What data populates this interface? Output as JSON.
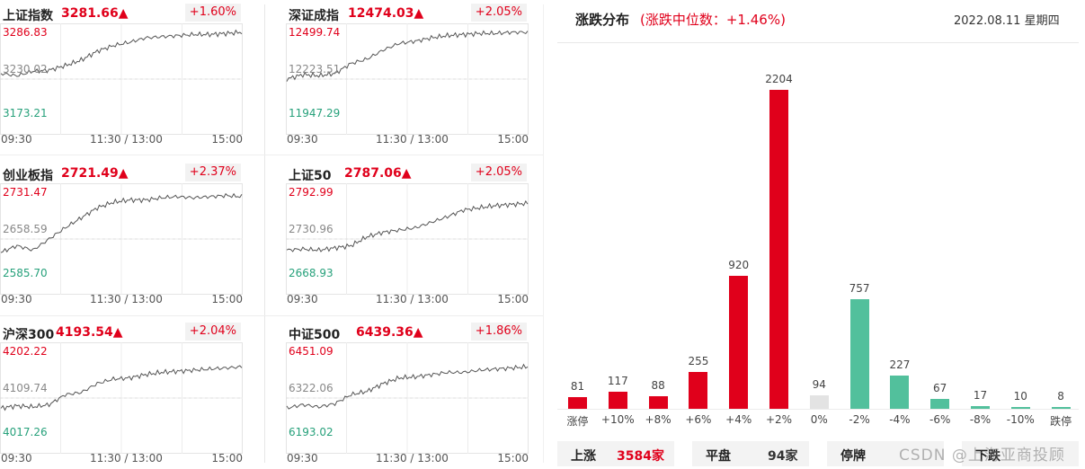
{
  "indices": [
    {
      "name": "上证指数",
      "value": "3281.66▲",
      "change": "+1.60%",
      "high": "3286.83",
      "mid": "3230.02",
      "low": "3173.21"
    },
    {
      "name": "深证成指",
      "value": "12474.03▲",
      "change": "+2.05%",
      "high": "12499.74",
      "mid": "12223.51",
      "low": "11947.29"
    },
    {
      "name": "创业板指",
      "value": "2721.49▲",
      "change": "+2.37%",
      "high": "2731.47",
      "mid": "2658.59",
      "low": "2585.70"
    },
    {
      "name": "上证50",
      "value": "2787.06▲",
      "change": "+2.05%",
      "high": "2792.99",
      "mid": "2730.96",
      "low": "2668.93"
    },
    {
      "name": "沪深300",
      "value": "4193.54▲",
      "change": "+2.04%",
      "high": "4202.22",
      "mid": "4109.74",
      "low": "4017.26"
    },
    {
      "name": "中证500",
      "value": "6439.36▲",
      "change": "+1.86%",
      "high": "6451.09",
      "mid": "6322.06",
      "low": "6193.02"
    }
  ],
  "time_labels": {
    "start": "09:30",
    "mid": "11:30 / 13:00",
    "end": "15:00"
  },
  "distribution": {
    "title": "涨跌分布",
    "subtitle": "(涨跌中位数：+1.46%)",
    "date": "2022.08.11 星期四",
    "summary": [
      {
        "label": "上涨",
        "value": "3584家"
      },
      {
        "label": "平盘",
        "value": "94家"
      },
      {
        "label": "停牌",
        "value": ""
      },
      {
        "label": "下跌",
        "value": ""
      }
    ]
  },
  "chart_data": {
    "type": "bar",
    "categories": [
      "涨停",
      "+10%",
      "+8%",
      "+6%",
      "+4%",
      "+2%",
      "0%",
      "-2%",
      "-4%",
      "-6%",
      "-8%",
      "-10%",
      "跌停"
    ],
    "values": [
      81,
      117,
      88,
      255,
      920,
      2204,
      94,
      757,
      227,
      67,
      17,
      10,
      8
    ],
    "colors": {
      "up": "#e0001b",
      "flat": "#e3e3e3",
      "down": "#52c09c"
    },
    "ylim": [
      0,
      2204
    ]
  },
  "watermark": "CSDN @上海亚商投顾",
  "colors": {
    "red": "#e0001b",
    "green": "#27a17b"
  }
}
